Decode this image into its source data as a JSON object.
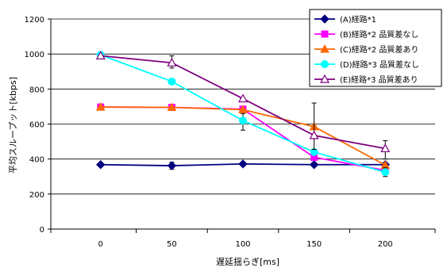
{
  "chart_data": {
    "type": "line",
    "title": "",
    "xlabel": "遅延揺らぎ[ms]",
    "ylabel": "平均スループット[kbps]",
    "x": [
      0,
      50,
      100,
      150,
      200
    ],
    "xlim": [
      -35,
      235
    ],
    "ylim": [
      0,
      1200
    ],
    "yticks": [
      0,
      200,
      400,
      600,
      800,
      1000,
      1200
    ],
    "grid": "horizontal",
    "legend_position": "top-right",
    "series": [
      {
        "name": "(A)経路*1",
        "color": "#000080",
        "marker": "diamond-filled",
        "values": [
          368,
          362,
          372,
          368,
          368
        ],
        "err_low": [
          0,
          20,
          0,
          0,
          0
        ],
        "err_high": [
          0,
          20,
          0,
          0,
          0
        ]
      },
      {
        "name": "(B)経路*2 品質差なし",
        "color": "#ff00ff",
        "marker": "square-filled",
        "values": [
          697,
          695,
          685,
          410,
          335
        ],
        "err_low": [
          0,
          0,
          0,
          0,
          0
        ],
        "err_high": [
          0,
          0,
          0,
          0,
          0
        ]
      },
      {
        "name": "(C)経路*2 品質差あり",
        "color": "#ff6600",
        "marker": "triangle-filled",
        "values": [
          697,
          695,
          682,
          585,
          365
        ],
        "err_low": [
          0,
          0,
          0,
          0,
          0
        ],
        "err_high": [
          0,
          0,
          0,
          0,
          0
        ]
      },
      {
        "name": "(D)経路*3 品質差なし",
        "color": "#00ffff",
        "marker": "circle-filled",
        "values": [
          995,
          843,
          620,
          440,
          325
        ],
        "err_low": [
          0,
          0,
          55,
          0,
          25
        ],
        "err_high": [
          0,
          0,
          40,
          0,
          25
        ]
      },
      {
        "name": "(E)経路*3 品質差あり",
        "color": "#800080",
        "marker": "triangle-open",
        "values": [
          990,
          950,
          745,
          535,
          460
        ],
        "err_low": [
          0,
          30,
          0,
          80,
          60
        ],
        "err_high": [
          0,
          40,
          0,
          185,
          45
        ]
      }
    ]
  }
}
